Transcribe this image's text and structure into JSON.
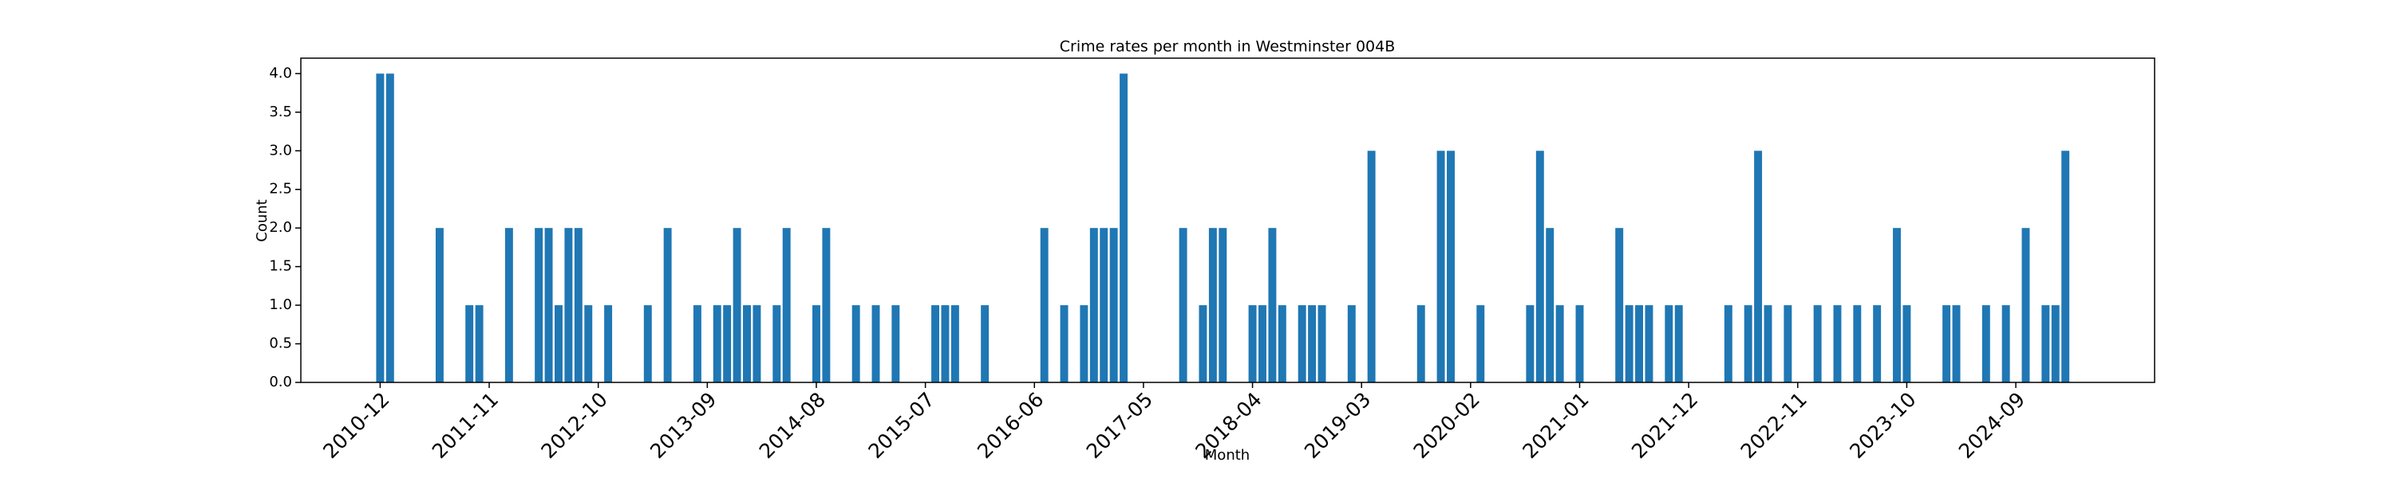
{
  "chart_data": {
    "type": "bar",
    "title": "Crime rates per month in Westminster 004B",
    "xlabel": "Month",
    "ylabel": "Count",
    "color": "#1f77b4",
    "x": [
      "2010-12",
      "2011-01",
      "2011-06",
      "2011-09",
      "2011-10",
      "2012-01",
      "2012-04",
      "2012-05",
      "2012-06",
      "2012-07",
      "2012-08",
      "2012-09",
      "2012-11",
      "2013-03",
      "2013-05",
      "2013-08",
      "2013-10",
      "2013-11",
      "2013-12",
      "2014-01",
      "2014-02",
      "2014-04",
      "2014-05",
      "2014-08",
      "2014-09",
      "2014-12",
      "2015-02",
      "2015-04",
      "2015-08",
      "2015-09",
      "2015-10",
      "2016-01",
      "2016-07",
      "2016-09",
      "2016-11",
      "2016-12",
      "2017-01",
      "2017-02",
      "2017-03",
      "2017-09",
      "2017-11",
      "2017-12",
      "2018-01",
      "2018-04",
      "2018-05",
      "2018-06",
      "2018-07",
      "2018-09",
      "2018-10",
      "2018-11",
      "2019-02",
      "2019-04",
      "2019-09",
      "2019-11",
      "2019-12",
      "2020-03",
      "2020-08",
      "2020-09",
      "2020-10",
      "2020-11",
      "2021-01",
      "2021-05",
      "2021-06",
      "2021-07",
      "2021-08",
      "2021-10",
      "2021-11",
      "2022-04",
      "2022-06",
      "2022-07",
      "2022-08",
      "2022-10",
      "2023-01",
      "2023-03",
      "2023-05",
      "2023-07",
      "2023-09",
      "2023-10",
      "2024-02",
      "2024-03",
      "2024-06",
      "2024-08",
      "2024-10",
      "2024-12",
      "2025-01",
      "2025-02"
    ],
    "values": [
      4,
      4,
      2,
      1,
      1,
      2,
      2,
      2,
      1,
      2,
      2,
      1,
      1,
      1,
      2,
      1,
      1,
      1,
      2,
      1,
      1,
      1,
      2,
      1,
      2,
      1,
      1,
      1,
      1,
      1,
      1,
      1,
      2,
      1,
      1,
      2,
      2,
      2,
      4,
      2,
      1,
      2,
      2,
      1,
      1,
      2,
      1,
      1,
      1,
      1,
      1,
      3,
      1,
      3,
      3,
      1,
      1,
      3,
      2,
      1,
      1,
      2,
      1,
      1,
      1,
      1,
      1,
      1,
      1,
      3,
      1,
      1,
      1,
      1,
      1,
      1,
      2,
      1,
      1,
      1,
      1,
      1,
      2,
      1,
      1,
      3
    ],
    "xlim": [
      "2010-04",
      "2025-11"
    ],
    "xticks": [
      "2010-12",
      "2011-11",
      "2012-10",
      "2013-09",
      "2014-08",
      "2015-07",
      "2016-06",
      "2017-05",
      "2018-04",
      "2019-03",
      "2020-02",
      "2021-01",
      "2021-12",
      "2022-11",
      "2023-10",
      "2024-09"
    ],
    "ylim": [
      0,
      4.2
    ],
    "yticks": [
      {
        "value": 0,
        "label": "0.0"
      },
      {
        "value": 0.5,
        "label": "0.5"
      },
      {
        "value": 1,
        "label": "1.0"
      },
      {
        "value": 1.5,
        "label": "1.5"
      },
      {
        "value": 2,
        "label": "2.0"
      },
      {
        "value": 2.5,
        "label": "2.5"
      },
      {
        "value": 3,
        "label": "3.0"
      },
      {
        "value": 3.5,
        "label": "3.5"
      },
      {
        "value": 4,
        "label": "4.0"
      }
    ]
  }
}
